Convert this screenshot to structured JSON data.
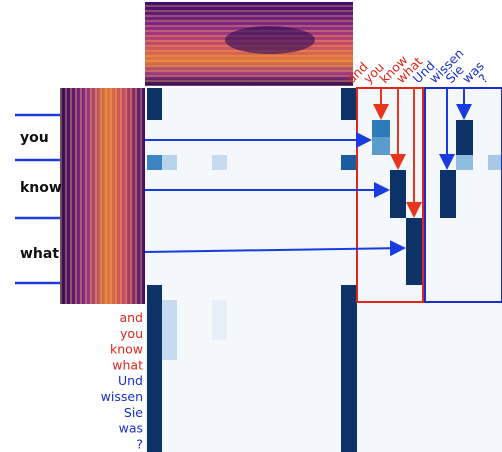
{
  "left_words": [
    "you",
    "know",
    "what"
  ],
  "top_labels": [
    {
      "text": "and",
      "color": "#e0251b"
    },
    {
      "text": "you",
      "color": "#e0251b"
    },
    {
      "text": "know",
      "color": "#e0251b"
    },
    {
      "text": "what",
      "color": "#e0251b"
    },
    {
      "text": "Und",
      "color": "#1a2fc8"
    },
    {
      "text": "wissen",
      "color": "#1a2fc8"
    },
    {
      "text": "Sie",
      "color": "#1a2fc8"
    },
    {
      "text": "was",
      "color": "#1a2fc8"
    },
    {
      "text": "?",
      "color": "#1a2fc8"
    }
  ],
  "row_labels": [
    {
      "text": "and",
      "color": "#e0251b"
    },
    {
      "text": "you",
      "color": "#e0251b"
    },
    {
      "text": "know",
      "color": "#e0251b"
    },
    {
      "text": "what",
      "color": "#e0251b"
    },
    {
      "text": "Und",
      "color": "#1a2fc8"
    },
    {
      "text": "wissen",
      "color": "#1a2fc8"
    },
    {
      "text": "Sie",
      "color": "#1a2fc8"
    },
    {
      "text": "was",
      "color": "#1a2fc8"
    },
    {
      "text": "?",
      "color": "#1a2fc8"
    }
  ]
}
